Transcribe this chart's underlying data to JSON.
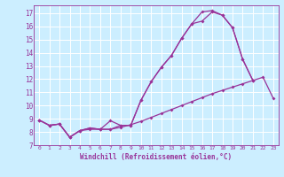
{
  "bg_color": "#cceeff",
  "line_color": "#993399",
  "xlim": [
    -0.5,
    23.5
  ],
  "ylim": [
    7,
    17.6
  ],
  "xticks": [
    0,
    1,
    2,
    3,
    4,
    5,
    6,
    7,
    8,
    9,
    10,
    11,
    12,
    13,
    14,
    15,
    16,
    17,
    18,
    19,
    20,
    21,
    22,
    23
  ],
  "yticks": [
    7,
    8,
    9,
    10,
    11,
    12,
    13,
    14,
    15,
    16,
    17
  ],
  "xlabel": "Windchill (Refroidissement éolien,°C)",
  "line1_x": [
    0,
    1,
    2,
    3,
    4,
    5,
    6,
    7,
    8,
    9,
    10,
    11,
    12,
    13,
    14,
    15,
    16,
    17,
    18,
    19,
    20,
    21
  ],
  "line1_y": [
    8.9,
    8.5,
    8.6,
    7.6,
    8.1,
    8.3,
    8.2,
    8.85,
    8.5,
    8.5,
    10.4,
    11.8,
    12.9,
    13.8,
    15.1,
    16.2,
    17.1,
    17.2,
    16.85,
    15.9,
    13.5,
    11.9
  ],
  "line2_x": [
    0,
    1,
    2,
    3,
    4,
    5,
    6,
    7,
    8,
    9,
    10,
    11,
    12,
    13,
    14,
    15,
    16,
    17,
    18,
    19,
    20,
    21
  ],
  "line2_y": [
    8.9,
    8.5,
    8.6,
    7.6,
    8.1,
    8.3,
    8.2,
    8.2,
    8.5,
    8.5,
    10.4,
    11.8,
    12.9,
    13.8,
    15.1,
    16.2,
    16.4,
    17.1,
    16.85,
    15.9,
    13.5,
    11.9
  ],
  "line3_x": [
    0,
    1,
    2,
    3,
    4,
    5,
    6,
    7,
    8,
    9,
    10,
    11,
    12,
    13,
    14,
    15,
    16,
    17,
    18,
    19,
    20,
    21,
    22,
    23
  ],
  "line3_y": [
    8.9,
    8.5,
    8.6,
    7.6,
    8.1,
    8.2,
    8.2,
    8.2,
    8.35,
    8.55,
    8.8,
    9.1,
    9.4,
    9.7,
    10.0,
    10.3,
    10.6,
    10.9,
    11.15,
    11.4,
    11.65,
    11.9,
    12.15,
    10.55
  ]
}
